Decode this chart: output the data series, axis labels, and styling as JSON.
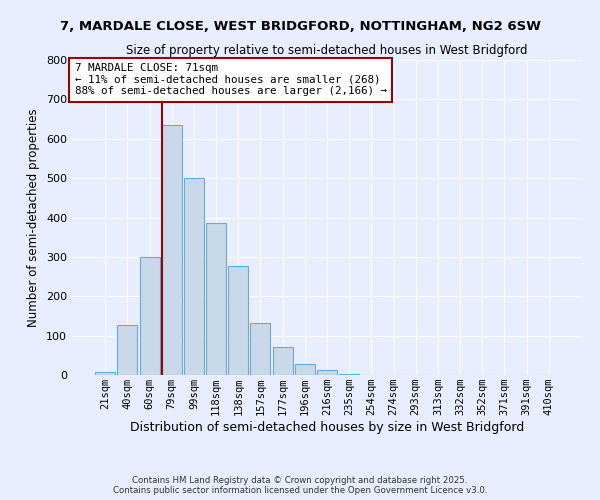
{
  "title1": "7, MARDALE CLOSE, WEST BRIDGFORD, NOTTINGHAM, NG2 6SW",
  "title2": "Size of property relative to semi-detached houses in West Bridgford",
  "xlabel": "Distribution of semi-detached houses by size in West Bridgford",
  "ylabel": "Number of semi-detached properties",
  "bar_labels": [
    "21sqm",
    "40sqm",
    "60sqm",
    "79sqm",
    "99sqm",
    "118sqm",
    "138sqm",
    "157sqm",
    "177sqm",
    "196sqm",
    "216sqm",
    "235sqm",
    "254sqm",
    "274sqm",
    "293sqm",
    "313sqm",
    "332sqm",
    "352sqm",
    "371sqm",
    "391sqm",
    "410sqm"
  ],
  "bar_values": [
    8,
    128,
    300,
    635,
    500,
    385,
    278,
    132,
    70,
    28,
    13,
    3,
    0,
    0,
    0,
    0,
    0,
    0,
    0,
    0,
    0
  ],
  "bar_color": "#c8d8e8",
  "bar_edgecolor": "#6aaad4",
  "ylim": [
    0,
    800
  ],
  "yticks": [
    0,
    100,
    200,
    300,
    400,
    500,
    600,
    700,
    800
  ],
  "property_line_color": "#990000",
  "annotation_title": "7 MARDALE CLOSE: 71sqm",
  "annotation_line1": "← 11% of semi-detached houses are smaller (268)",
  "annotation_line2": "88% of semi-detached houses are larger (2,166) →",
  "annotation_box_color": "#990000",
  "footer1": "Contains HM Land Registry data © Crown copyright and database right 2025.",
  "footer2": "Contains public sector information licensed under the Open Government Licence v3.0.",
  "bg_color": "#e8eeff",
  "grid_color": "#ffffff"
}
